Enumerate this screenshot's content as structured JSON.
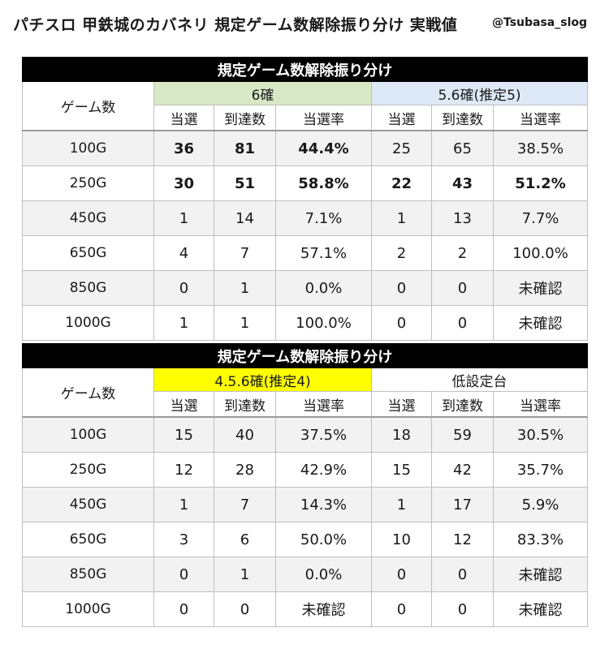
{
  "header": {
    "title": "パチスロ 甲鉄城のカバネリ 規定ゲーム数解除振り分け 実戦値",
    "handle": "@Tsubasa_slog"
  },
  "colors": {
    "group_6": "#d8e8c6",
    "group_56": "#dde9f6",
    "group_456": "#ffff00",
    "group_low": "#ffffff",
    "header_bg": "#000000"
  },
  "tables": [
    {
      "title": "規定ゲーム数解除振り分け",
      "row_header": "ゲーム数",
      "groups": [
        "6確",
        "5.6確(推定5)"
      ],
      "sub_headers": [
        "当選",
        "到達数",
        "当選率",
        "当選",
        "到達数",
        "当選率"
      ],
      "rows": [
        {
          "game": "100G",
          "cells": [
            "36",
            "81",
            "44.4%",
            "25",
            "65",
            "38.5%"
          ]
        },
        {
          "game": "250G",
          "cells": [
            "30",
            "51",
            "58.8%",
            "22",
            "43",
            "51.2%"
          ]
        },
        {
          "game": "450G",
          "cells": [
            "1",
            "14",
            "7.1%",
            "1",
            "13",
            "7.7%"
          ]
        },
        {
          "game": "650G",
          "cells": [
            "4",
            "7",
            "57.1%",
            "2",
            "2",
            "100.0%"
          ]
        },
        {
          "game": "850G",
          "cells": [
            "0",
            "1",
            "0.0%",
            "0",
            "0",
            "未確認"
          ]
        },
        {
          "game": "1000G",
          "cells": [
            "1",
            "1",
            "100.0%",
            "0",
            "0",
            "未確認"
          ]
        }
      ]
    },
    {
      "title": "規定ゲーム数解除振り分け",
      "row_header": "ゲーム数",
      "groups": [
        "4.5.6確(推定4)",
        "低設定台"
      ],
      "sub_headers": [
        "当選",
        "到達数",
        "当選率",
        "当選",
        "到達数",
        "当選率"
      ],
      "rows": [
        {
          "game": "100G",
          "cells": [
            "15",
            "40",
            "37.5%",
            "18",
            "59",
            "30.5%"
          ]
        },
        {
          "game": "250G",
          "cells": [
            "12",
            "28",
            "42.9%",
            "15",
            "42",
            "35.7%"
          ]
        },
        {
          "game": "450G",
          "cells": [
            "1",
            "7",
            "14.3%",
            "1",
            "17",
            "5.9%"
          ]
        },
        {
          "game": "650G",
          "cells": [
            "3",
            "6",
            "50.0%",
            "10",
            "12",
            "83.3%"
          ]
        },
        {
          "game": "850G",
          "cells": [
            "0",
            "1",
            "0.0%",
            "0",
            "0",
            "未確認"
          ]
        },
        {
          "game": "1000G",
          "cells": [
            "0",
            "0",
            "未確認",
            "0",
            "0",
            "未確認"
          ]
        }
      ]
    }
  ]
}
